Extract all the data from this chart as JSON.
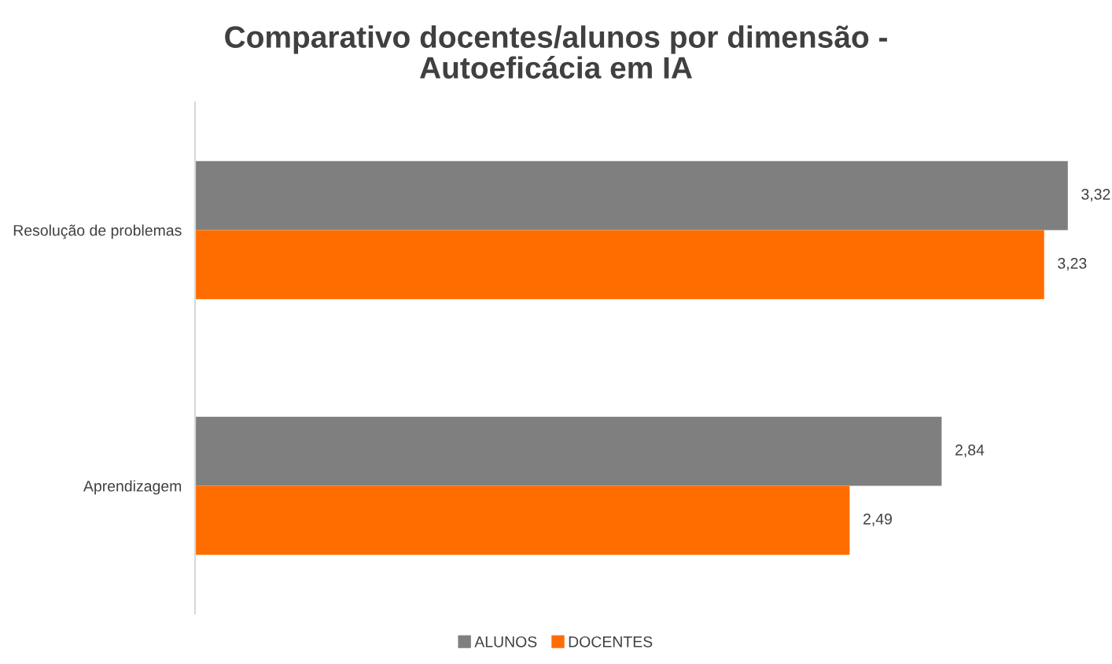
{
  "chart_data": {
    "type": "bar",
    "orientation": "horizontal",
    "title": "Comparativo docentes/alunos por dimensão -\nAutoeficácia em IA",
    "categories": [
      "Resolução de problemas",
      "Aprendizagem"
    ],
    "series": [
      {
        "name": "ALUNOS",
        "color": "#7f7f7f",
        "values": [
          3.32,
          2.84
        ],
        "value_labels": [
          "3,32",
          "2,84"
        ]
      },
      {
        "name": "DOCENTES",
        "color": "#ff6d00",
        "values": [
          3.23,
          2.49
        ],
        "value_labels": [
          "3,23",
          "2,49"
        ]
      }
    ],
    "legend": "bottom",
    "grid": false
  }
}
